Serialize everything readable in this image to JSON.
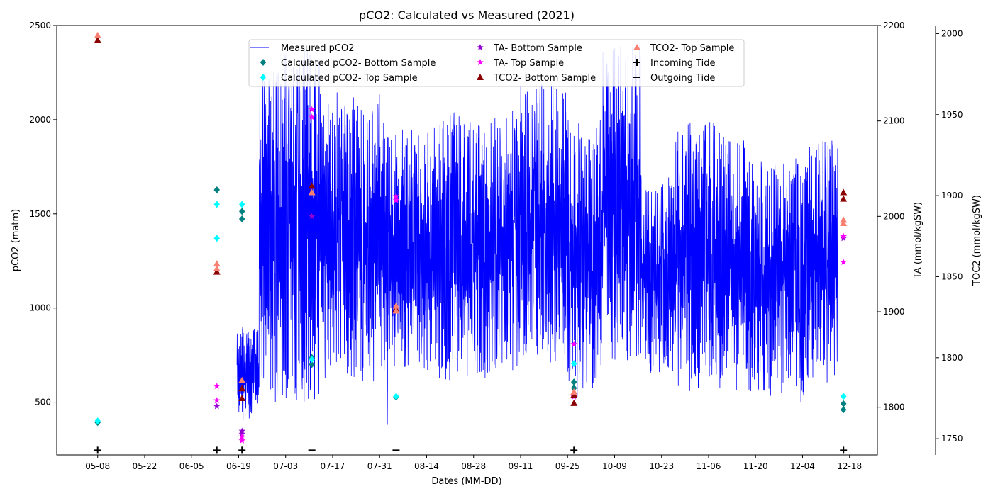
{
  "chart_data": {
    "type": "scatter",
    "title": "pCO2: Calculated vs Measured (2021)",
    "xlabel": "Dates (MM-DD)",
    "ylabel": "pCO2 (matm)",
    "y2label": "TA (mmol/kgSW)",
    "y3label": "TOC2 (mmol/kgSW)",
    "x_tick_labels": [
      "05-08",
      "05-22",
      "06-05",
      "06-19",
      "07-03",
      "07-17",
      "07-31",
      "08-14",
      "08-28",
      "09-11",
      "09-25",
      "10-09",
      "10-23",
      "11-06",
      "11-20",
      "12-04",
      "12-18"
    ],
    "x_tick_days": [
      0,
      14,
      28,
      42,
      56,
      70,
      84,
      98,
      112,
      126,
      140,
      154,
      168,
      182,
      196,
      210,
      224
    ],
    "xlim_days": [
      -12.2,
      232.3
    ],
    "ylim": [
      220,
      2500
    ],
    "yticks": [
      500,
      1000,
      1500,
      2000,
      2500
    ],
    "y2lim": [
      1750,
      2200
    ],
    "y2ticks": [
      1800,
      1900,
      2000,
      2100,
      2200
    ],
    "y3lim": [
      1740,
      2005
    ],
    "y3ticks": [
      1750,
      1800,
      1850,
      1900,
      1950,
      2000
    ],
    "grid": false,
    "legend_position": "top-center",
    "measured": {
      "name": "Measured pCO2",
      "color": "#0000ff",
      "segments": [
        [
          41.5,
          86.5
        ],
        [
          86.6,
          220.5
        ]
      ],
      "band_days": [
        [
          41.5,
          48,
          400,
          900
        ],
        [
          48,
          56,
          480,
          2350
        ],
        [
          56,
          66,
          500,
          2400
        ],
        [
          66,
          86,
          600,
          2150
        ],
        [
          86,
          100,
          650,
          1950
        ],
        [
          100,
          126,
          600,
          2050
        ],
        [
          126,
          140,
          700,
          2200
        ],
        [
          140,
          150,
          520,
          2000
        ],
        [
          150,
          162,
          720,
          2400
        ],
        [
          162,
          172,
          650,
          1700
        ],
        [
          172,
          196,
          550,
          2000
        ],
        [
          196,
          212,
          500,
          1800
        ],
        [
          212,
          220.5,
          600,
          1900
        ]
      ],
      "dips": [
        [
          86.3,
          380
        ]
      ]
    },
    "series": [
      {
        "name": "Calculated pCO2- Bottom Sample",
        "axis": "y",
        "marker": "diamond",
        "color": "#008080",
        "points": [
          [
            0,
            392
          ],
          [
            35.5,
            1627
          ],
          [
            43,
            1513
          ],
          [
            43,
            1473
          ],
          [
            63.8,
            737
          ],
          [
            63.8,
            700
          ],
          [
            88.9,
            527
          ],
          [
            141.9,
            607
          ],
          [
            141.9,
            575
          ],
          [
            222.2,
            492
          ],
          [
            222.2,
            460
          ]
        ]
      },
      {
        "name": "Calculated pCO2- Top Sample",
        "axis": "y",
        "marker": "diamond",
        "color": "#00ffff",
        "points": [
          [
            0,
            400
          ],
          [
            35.5,
            1550
          ],
          [
            35.5,
            1370
          ],
          [
            43,
            1550
          ],
          [
            63.8,
            727
          ],
          [
            88.9,
            531
          ],
          [
            141.9,
            705
          ],
          [
            222.2,
            531
          ]
        ]
      },
      {
        "name": "TA- Bottom Sample",
        "axis": "y2",
        "marker": "star",
        "color": "#9400d3",
        "points": [
          [
            35.5,
            1801
          ],
          [
            43,
            1772
          ],
          [
            43,
            1775
          ],
          [
            63.8,
            2000
          ],
          [
            222.2,
            1977
          ]
        ]
      },
      {
        "name": "TA- Top Sample",
        "axis": "y2",
        "marker": "star",
        "color": "#ff00ff",
        "points": [
          [
            35.5,
            1822
          ],
          [
            35.5,
            1807
          ],
          [
            43,
            1769
          ],
          [
            43,
            1765
          ],
          [
            63.8,
            2112
          ],
          [
            63.8,
            2104
          ],
          [
            88.9,
            2021
          ],
          [
            88.9,
            2017
          ],
          [
            141.9,
            1866
          ],
          [
            141.9,
            1811
          ],
          [
            222.2,
            1979
          ],
          [
            222.2,
            1952
          ]
        ]
      },
      {
        "name": "TCO2- Bottom Sample",
        "axis": "y3",
        "marker": "triangle",
        "color": "#8b0000",
        "points": [
          [
            0,
            1996
          ],
          [
            35.5,
            1853
          ],
          [
            43,
            1781
          ],
          [
            43,
            1775
          ],
          [
            63.8,
            1906
          ],
          [
            88.9,
            1830
          ],
          [
            141.9,
            1772
          ],
          [
            141.9,
            1777
          ],
          [
            222.2,
            1902
          ],
          [
            222.2,
            1898
          ]
        ]
      },
      {
        "name": "TCO2- Top Sample",
        "axis": "y3",
        "marker": "triangle",
        "color": "#fa8072",
        "points": [
          [
            0,
            1999
          ],
          [
            35.5,
            1858
          ],
          [
            35.5,
            1855
          ],
          [
            43,
            1786
          ],
          [
            63.8,
            1902
          ],
          [
            88.9,
            1832
          ],
          [
            88.9,
            1829
          ],
          [
            141.9,
            1779
          ],
          [
            222.2,
            1885
          ],
          [
            222.2,
            1883
          ]
        ]
      },
      {
        "name": "Incoming Tide",
        "axis": "y",
        "marker": "plus",
        "color": "#000000",
        "points": [
          [
            0,
            245
          ],
          [
            35.5,
            245
          ],
          [
            43,
            245
          ],
          [
            141.9,
            245
          ],
          [
            222.2,
            245
          ]
        ]
      },
      {
        "name": "Outgoing Tide",
        "axis": "y",
        "marker": "minus",
        "color": "#000000",
        "points": [
          [
            63.8,
            245
          ],
          [
            88.9,
            245
          ]
        ]
      }
    ]
  }
}
